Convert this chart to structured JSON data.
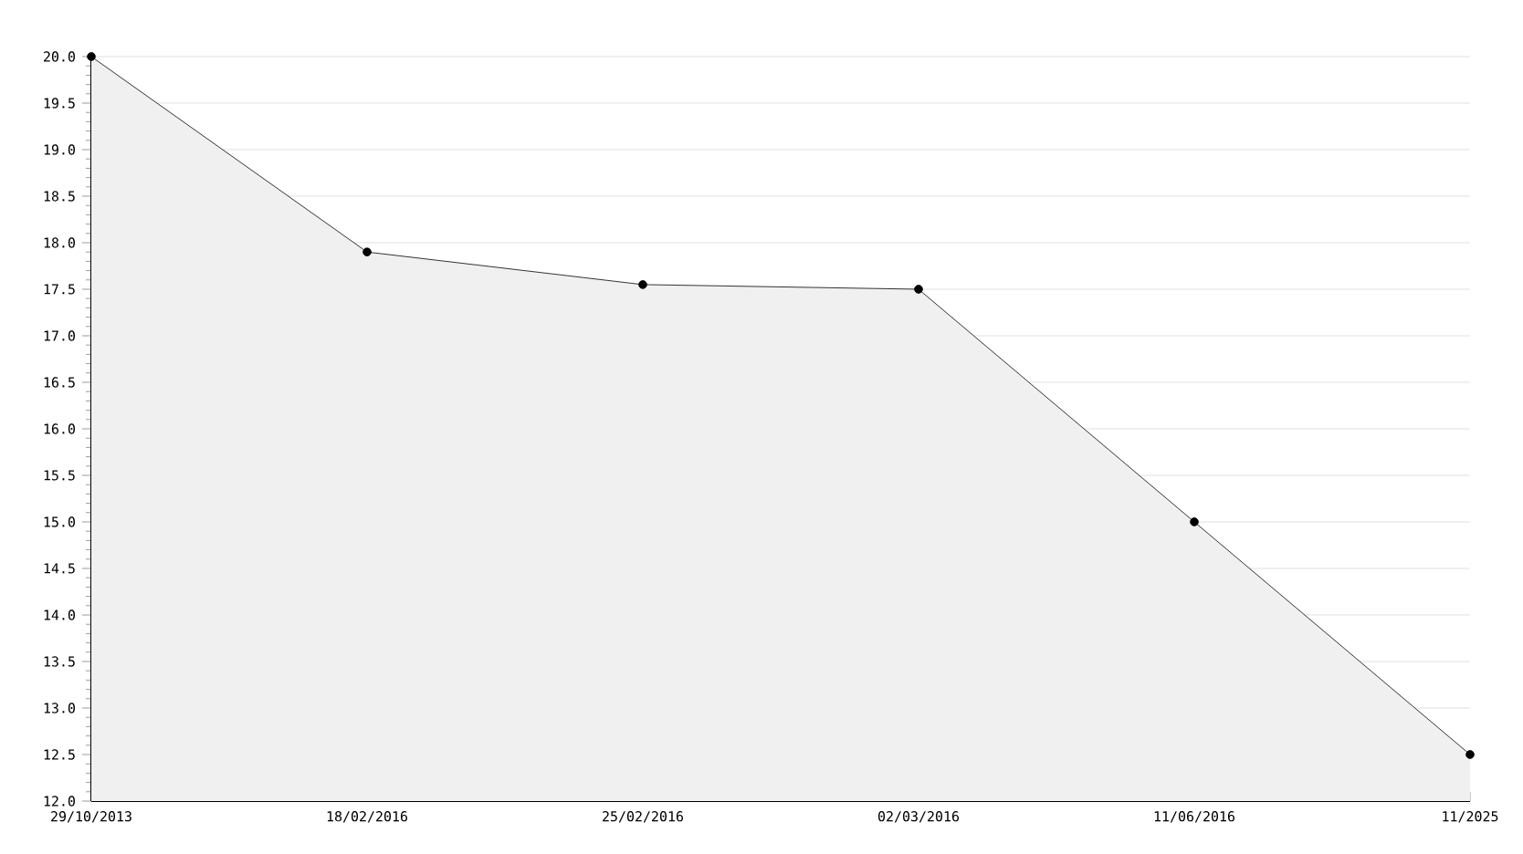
{
  "chart_data": {
    "type": "area",
    "categories": [
      "29/10/2013",
      "18/02/2016",
      "25/02/2016",
      "02/03/2016",
      "11/06/2016",
      "11/2025"
    ],
    "values": [
      20.0,
      17.9,
      17.55,
      17.5,
      15.0,
      12.5
    ],
    "color": "#000000",
    "ylim": [
      12.0,
      20.0
    ],
    "yticks": [
      {
        "value": 12,
        "label": "12.0"
      },
      {
        "value": 12.5,
        "label": "12.5"
      },
      {
        "value": 13,
        "label": "13.0"
      },
      {
        "value": 13.5,
        "label": "13.5"
      },
      {
        "value": 14,
        "label": "14.0"
      },
      {
        "value": 14.5,
        "label": "14.5"
      },
      {
        "value": 15,
        "label": "15.0"
      },
      {
        "value": 15.5,
        "label": "15.5"
      },
      {
        "value": 16,
        "label": "16.0"
      },
      {
        "value": 16.5,
        "label": "16.5"
      },
      {
        "value": 17,
        "label": "17.0"
      },
      {
        "value": 17.5,
        "label": "17.5"
      },
      {
        "value": 18,
        "label": "18.0"
      },
      {
        "value": 18.5,
        "label": "18.5"
      },
      {
        "value": 19,
        "label": "19.0"
      },
      {
        "value": 19.5,
        "label": "19.5"
      },
      {
        "value": 20,
        "label": "20.0"
      }
    ],
    "grid": "y",
    "marker": "circle",
    "line_style": "solid"
  }
}
